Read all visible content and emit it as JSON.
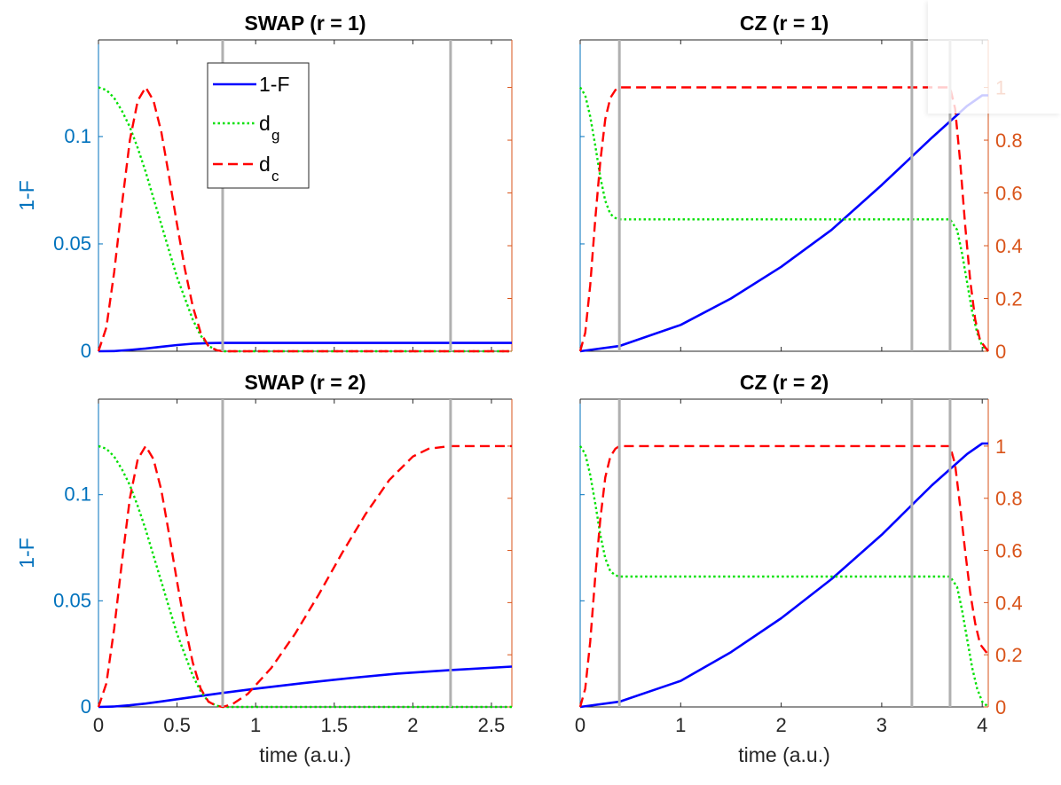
{
  "colors": {
    "left_axis": "#0072BD",
    "right_axis": "#D95319",
    "one_minus_f": "#0000FF",
    "dg": "#00E000",
    "dc": "#FF0000",
    "marker": "#B0B0B0",
    "axes_box": "#262626"
  },
  "shared": {
    "xlabel": "time (a.u.)",
    "left_ylabel": "1-F",
    "right_ticks": [
      "0",
      "0.2",
      "0.4",
      "0.6",
      "0.8",
      "1"
    ],
    "left_ticks": [
      "0",
      "0.05",
      "0.1"
    ]
  },
  "legend": {
    "entries": [
      {
        "key": "one_minus_f",
        "main": "1-F",
        "sub": ""
      },
      {
        "key": "dg",
        "main": "d",
        "sub": "g"
      },
      {
        "key": "dc",
        "main": "d",
        "sub": "c"
      }
    ]
  },
  "chart_data": [
    {
      "type": "line",
      "title": "SWAP (r = 1)",
      "xlim": [
        0,
        2.63
      ],
      "ylim_left": [
        0,
        0.145
      ],
      "ylim_right": [
        0,
        1.18
      ],
      "xticks": [
        0,
        0.5,
        1,
        1.5,
        2,
        2.5
      ],
      "xtick_labels": [
        "0",
        "0.5",
        "1",
        "1.5",
        "2",
        "2.5"
      ],
      "markers": [
        0.79,
        2.24
      ],
      "series": [
        {
          "name": "1-F",
          "axis": "left",
          "x": [
            0,
            0.1,
            0.2,
            0.3,
            0.4,
            0.5,
            0.6,
            0.7,
            0.79,
            1.2,
            1.8,
            2.63
          ],
          "y": [
            0,
            0.0001,
            0.0006,
            0.0013,
            0.0021,
            0.0029,
            0.0035,
            0.0038,
            0.0039,
            0.0039,
            0.0039,
            0.0039
          ]
        },
        {
          "name": "d_g",
          "axis": "right",
          "x": [
            0,
            0.05,
            0.1,
            0.15,
            0.2,
            0.25,
            0.3,
            0.35,
            0.4,
            0.45,
            0.5,
            0.55,
            0.6,
            0.65,
            0.7,
            0.75,
            0.79,
            1.2,
            2.63
          ],
          "y": [
            1,
            0.99,
            0.96,
            0.91,
            0.85,
            0.77,
            0.68,
            0.58,
            0.48,
            0.38,
            0.28,
            0.2,
            0.12,
            0.06,
            0.02,
            0.005,
            0,
            0,
            0
          ]
        },
        {
          "name": "d_c",
          "axis": "right",
          "x": [
            0,
            0.05,
            0.1,
            0.15,
            0.2,
            0.25,
            0.3,
            0.35,
            0.4,
            0.45,
            0.5,
            0.55,
            0.6,
            0.65,
            0.7,
            0.75,
            0.79,
            1.5,
            2.63
          ],
          "y": [
            0,
            0.09,
            0.3,
            0.56,
            0.8,
            0.95,
            1.0,
            0.95,
            0.83,
            0.66,
            0.48,
            0.31,
            0.17,
            0.07,
            0.02,
            0.004,
            0,
            0,
            0
          ]
        }
      ]
    },
    {
      "type": "line",
      "title": "CZ (r = 1)",
      "xlim": [
        0,
        4.06
      ],
      "ylim_left": [
        0,
        0.145
      ],
      "ylim_right": [
        0,
        1.18
      ],
      "xticks": [
        0,
        1,
        2,
        3,
        4
      ],
      "xtick_labels": [
        "0",
        "1",
        "2",
        "3",
        "4"
      ],
      "markers": [
        0.39,
        3.3,
        3.68
      ],
      "series": [
        {
          "name": "1-F",
          "axis": "right",
          "x": [
            0,
            0.39,
            1.0,
            1.5,
            2.0,
            2.5,
            3.0,
            3.5,
            3.85,
            4.0,
            4.06
          ],
          "y": [
            0,
            0.02,
            0.1,
            0.2,
            0.32,
            0.46,
            0.63,
            0.81,
            0.93,
            0.97,
            0.97
          ]
        },
        {
          "name": "d_g",
          "axis": "right",
          "x": [
            0,
            0.05,
            0.1,
            0.15,
            0.2,
            0.25,
            0.3,
            0.35,
            0.39,
            3.68,
            3.75,
            3.8,
            3.85,
            3.9,
            3.95,
            4.0,
            4.06
          ],
          "y": [
            1,
            0.97,
            0.89,
            0.78,
            0.66,
            0.57,
            0.52,
            0.505,
            0.5,
            0.5,
            0.46,
            0.37,
            0.26,
            0.15,
            0.07,
            0.02,
            0
          ]
        },
        {
          "name": "d_c",
          "axis": "right",
          "x": [
            0,
            0.05,
            0.1,
            0.15,
            0.2,
            0.25,
            0.3,
            0.35,
            0.39,
            3.68,
            3.73,
            3.78,
            3.83,
            3.88,
            3.93,
            3.98,
            4.06
          ],
          "y": [
            0,
            0.07,
            0.25,
            0.5,
            0.72,
            0.88,
            0.96,
            0.99,
            1.0,
            1.0,
            0.92,
            0.72,
            0.48,
            0.27,
            0.12,
            0.04,
            0
          ]
        }
      ]
    },
    {
      "type": "line",
      "title": "SWAP (r = 2)",
      "xlim": [
        0,
        2.63
      ],
      "ylim_left": [
        0,
        0.145
      ],
      "ylim_right": [
        0,
        1.18
      ],
      "xticks": [
        0,
        0.5,
        1,
        1.5,
        2,
        2.5
      ],
      "xtick_labels": [
        "0",
        "0.5",
        "1",
        "1.5",
        "2",
        "2.5"
      ],
      "markers": [
        0.79,
        2.24
      ],
      "series": [
        {
          "name": "1-F",
          "axis": "left",
          "x": [
            0,
            0.1,
            0.2,
            0.3,
            0.4,
            0.6,
            0.79,
            1.0,
            1.3,
            1.6,
            1.9,
            2.24,
            2.63
          ],
          "y": [
            0,
            0.0002,
            0.0008,
            0.0016,
            0.0026,
            0.0047,
            0.0066,
            0.0086,
            0.0112,
            0.0136,
            0.0157,
            0.0174,
            0.019
          ]
        },
        {
          "name": "d_g",
          "axis": "right",
          "x": [
            0,
            0.05,
            0.1,
            0.15,
            0.2,
            0.25,
            0.3,
            0.35,
            0.4,
            0.45,
            0.5,
            0.55,
            0.6,
            0.65,
            0.7,
            0.75,
            0.79,
            1.2,
            2.63
          ],
          "y": [
            1,
            0.99,
            0.96,
            0.91,
            0.85,
            0.77,
            0.68,
            0.58,
            0.48,
            0.38,
            0.28,
            0.2,
            0.12,
            0.06,
            0.02,
            0.005,
            0,
            0,
            0
          ]
        },
        {
          "name": "d_c",
          "axis": "right",
          "x": [
            0,
            0.05,
            0.1,
            0.15,
            0.2,
            0.25,
            0.3,
            0.35,
            0.4,
            0.45,
            0.5,
            0.55,
            0.6,
            0.65,
            0.7,
            0.75,
            0.79,
            0.85,
            0.95,
            1.1,
            1.25,
            1.4,
            1.55,
            1.7,
            1.85,
            2.0,
            2.1,
            2.24,
            2.63
          ],
          "y": [
            0,
            0.09,
            0.3,
            0.56,
            0.8,
            0.95,
            1.0,
            0.95,
            0.83,
            0.66,
            0.48,
            0.31,
            0.17,
            0.07,
            0.02,
            0.004,
            0,
            0.01,
            0.05,
            0.15,
            0.28,
            0.43,
            0.59,
            0.74,
            0.87,
            0.96,
            0.99,
            1.0,
            1.0
          ]
        }
      ]
    },
    {
      "type": "line",
      "title": "CZ (r = 2)",
      "xlim": [
        0,
        4.06
      ],
      "ylim_left": [
        0,
        0.145
      ],
      "ylim_right": [
        0,
        1.18
      ],
      "xticks": [
        0,
        1,
        2,
        3,
        4
      ],
      "xtick_labels": [
        "0",
        "1",
        "2",
        "3",
        "4"
      ],
      "markers": [
        0.39,
        3.3,
        3.68
      ],
      "series": [
        {
          "name": "1-F",
          "axis": "right",
          "x": [
            0,
            0.39,
            1.0,
            1.5,
            2.0,
            2.5,
            3.0,
            3.5,
            3.85,
            4.0,
            4.06
          ],
          "y": [
            0,
            0.02,
            0.1,
            0.21,
            0.34,
            0.49,
            0.66,
            0.85,
            0.97,
            1.01,
            1.01
          ]
        },
        {
          "name": "d_g",
          "axis": "right",
          "x": [
            0,
            0.05,
            0.1,
            0.15,
            0.2,
            0.25,
            0.3,
            0.35,
            0.39,
            3.68,
            3.75,
            3.8,
            3.85,
            3.9,
            3.95,
            4.0,
            4.06
          ],
          "y": [
            1,
            0.97,
            0.89,
            0.78,
            0.66,
            0.57,
            0.52,
            0.505,
            0.5,
            0.5,
            0.46,
            0.37,
            0.26,
            0.15,
            0.07,
            0.02,
            0
          ]
        },
        {
          "name": "d_c",
          "axis": "right",
          "x": [
            0,
            0.05,
            0.1,
            0.15,
            0.2,
            0.25,
            0.3,
            0.35,
            0.39,
            3.68,
            3.73,
            3.78,
            3.83,
            3.88,
            3.93,
            3.98,
            4.06
          ],
          "y": [
            0,
            0.07,
            0.25,
            0.5,
            0.72,
            0.88,
            0.96,
            0.99,
            1.0,
            1.0,
            0.93,
            0.77,
            0.6,
            0.44,
            0.32,
            0.24,
            0.2
          ]
        }
      ]
    }
  ]
}
